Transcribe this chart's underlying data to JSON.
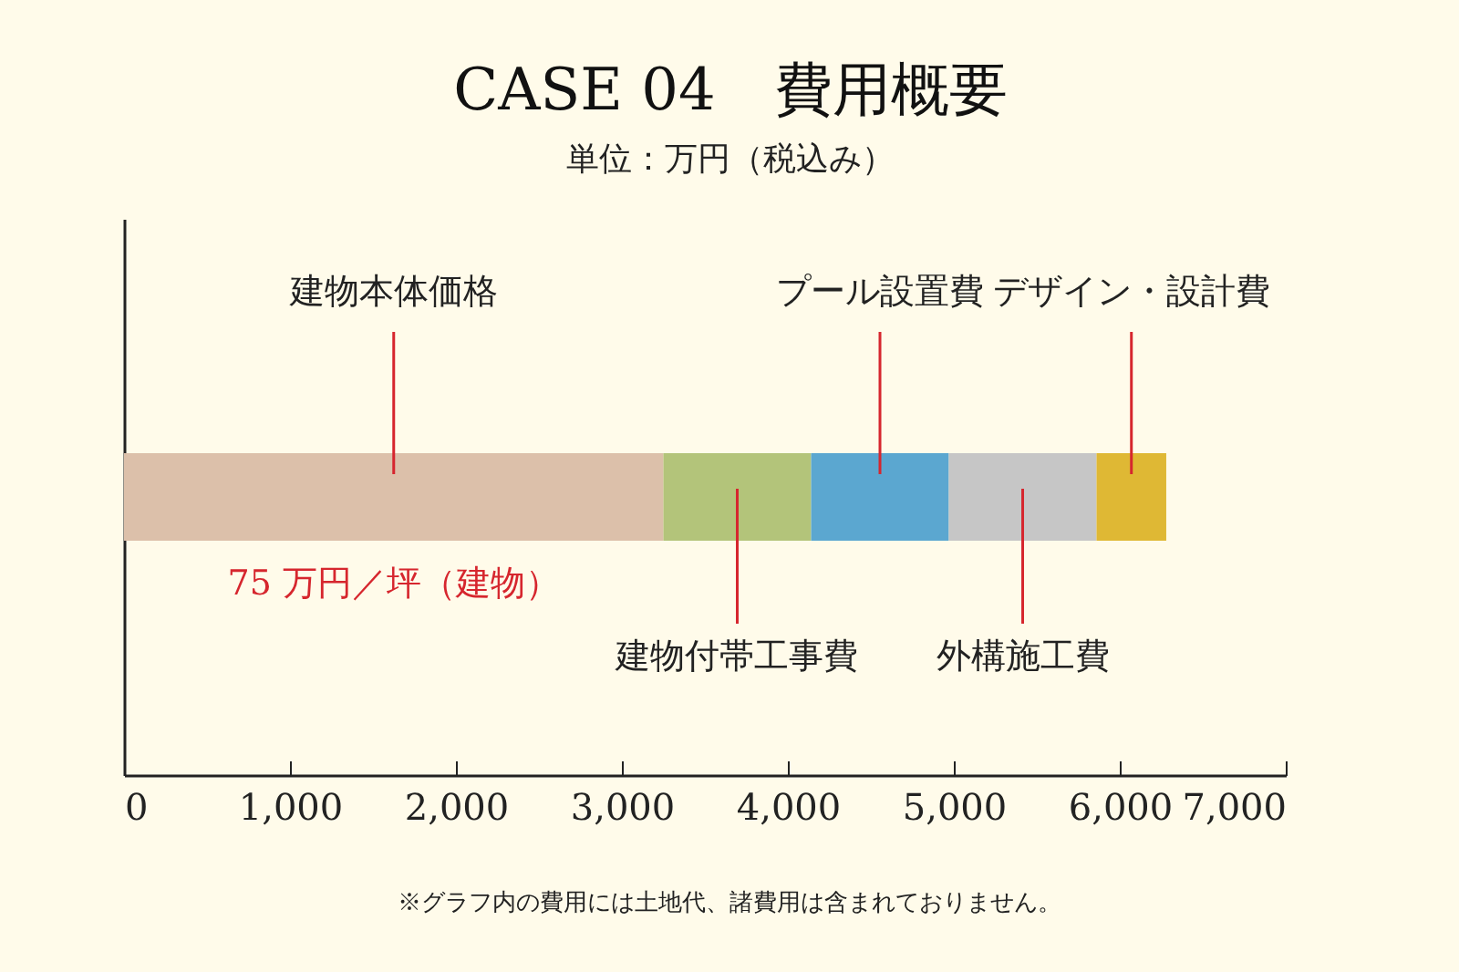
{
  "chart_data": {
    "type": "bar",
    "orientation": "horizontal",
    "stacked": true,
    "title": "CASE 04　費用概要",
    "subtitle": "単位：万円（税込み）",
    "categories": [
      null
    ],
    "series": [
      {
        "name": "建物本体価格",
        "color": "#dcc0aa",
        "values": [
          3250
        ]
      },
      {
        "name": "建物付帯工事費",
        "color": "#b3c47a",
        "values": [
          890
        ]
      },
      {
        "name": "プール設置費",
        "color": "#5ba7d0",
        "values": [
          830
        ]
      },
      {
        "name": "外構施工費",
        "color": "#c6c6c6",
        "values": [
          890
        ]
      },
      {
        "name": "デザイン・設計費",
        "color": "#dfb834",
        "values": [
          420
        ]
      }
    ],
    "xlim": [
      0,
      7000
    ],
    "xticks": [
      0,
      {
        "value": 1000,
        "label": "1,000"
      },
      {
        "value": 2000,
        "label": "2,000"
      },
      {
        "value": 3000,
        "label": "3,000"
      },
      {
        "value": 4000,
        "label": "4,000"
      },
      {
        "value": 5000,
        "label": "5,000"
      },
      {
        "value": 6000,
        "label": "6,000"
      },
      {
        "value": 7000,
        "label": "7,000"
      }
    ],
    "tick_labels": "x",
    "legend": false,
    "grid": false,
    "annotations": [
      "75 万円／坪（建物）",
      "※グラフ内の費用には土地代、諸費用は含まれておりません。"
    ]
  }
}
